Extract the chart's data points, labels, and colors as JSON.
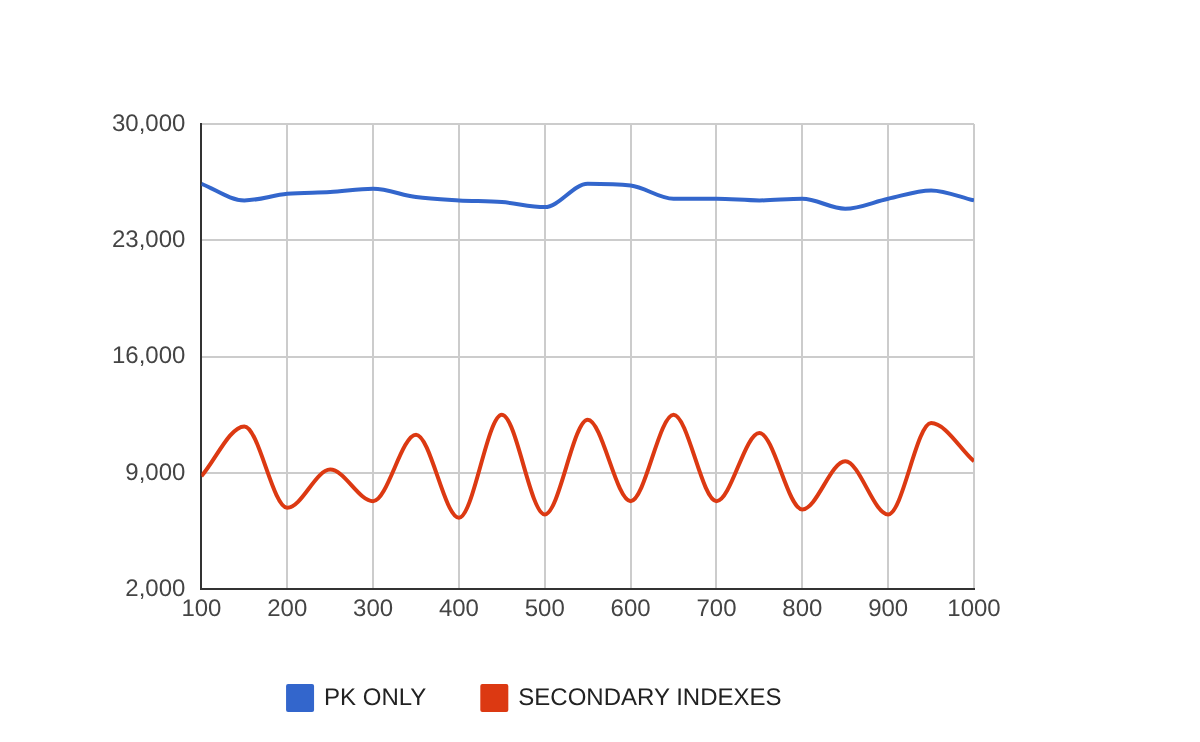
{
  "chart_data": {
    "type": "line",
    "x": [
      100,
      150,
      200,
      250,
      300,
      350,
      400,
      450,
      500,
      550,
      600,
      650,
      700,
      750,
      800,
      850,
      900,
      950,
      1000
    ],
    "series": [
      {
        "name": "PK ONLY",
        "color": "#3366cc",
        "values": [
          26400,
          25400,
          25800,
          25900,
          26100,
          25600,
          25400,
          25300,
          25000,
          26400,
          26300,
          25500,
          25500,
          25400,
          25500,
          24900,
          25500,
          26000,
          25400
        ]
      },
      {
        "name": "SECONDARY INDEXES",
        "color": "#dc3912",
        "values": [
          8800,
          11800,
          6900,
          9200,
          7300,
          11300,
          6300,
          12500,
          6500,
          12200,
          7300,
          12500,
          7300,
          11400,
          6800,
          9700,
          6500,
          12000,
          9700
        ]
      }
    ],
    "xlim": [
      100,
      1000
    ],
    "xticks": [
      100,
      200,
      300,
      400,
      500,
      600,
      700,
      800,
      900,
      1000
    ],
    "ylim": [
      2000,
      30000
    ],
    "yticks": [
      {
        "value": 2000,
        "label": "2,000"
      },
      {
        "value": 9000,
        "label": "9,000"
      },
      {
        "value": 16000,
        "label": "16,000"
      },
      {
        "value": 23000,
        "label": "23,000"
      },
      {
        "value": 30000,
        "label": "30,000"
      }
    ],
    "grid": true,
    "legend": "bottom",
    "marker": "none",
    "line_style": "solid"
  }
}
